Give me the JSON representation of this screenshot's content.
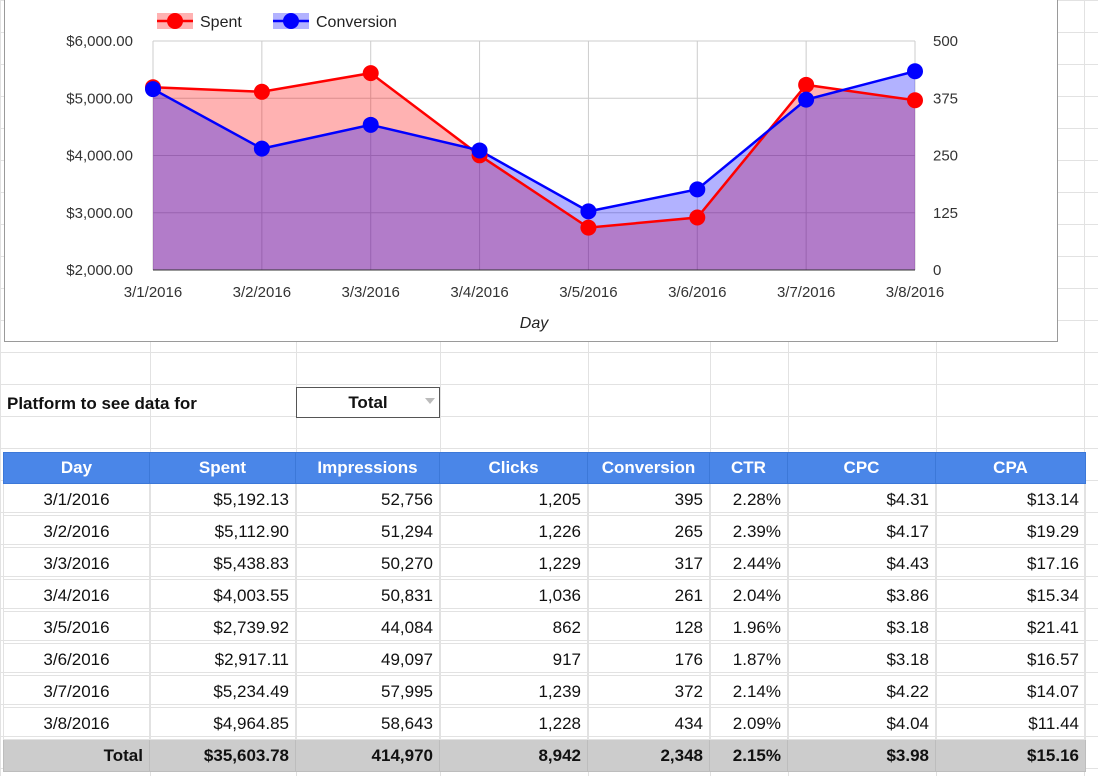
{
  "chart_data": {
    "type": "area",
    "x": [
      "3/1/2016",
      "3/2/2016",
      "3/3/2016",
      "3/4/2016",
      "3/5/2016",
      "3/6/2016",
      "3/7/2016",
      "3/8/2016"
    ],
    "xlabel": "Day",
    "series": [
      {
        "name": "Spent",
        "axis": "left",
        "color": "#ff0000",
        "fill": "#ffb3b3",
        "values": [
          5192.13,
          5112.9,
          5438.83,
          4003.55,
          2739.92,
          2917.11,
          5234.49,
          4964.85
        ]
      },
      {
        "name": "Conversion",
        "axis": "right",
        "color": "#0000ff",
        "fill": "#b3b3ff",
        "values": [
          395,
          265,
          317,
          261,
          128,
          176,
          372,
          434
        ]
      }
    ],
    "y_left": {
      "min": 2000,
      "max": 6000,
      "ticks": [
        "$2,000.00",
        "$3,000.00",
        "$4,000.00",
        "$5,000.00",
        "$6,000.00"
      ]
    },
    "y_right": {
      "min": 0,
      "max": 500,
      "ticks": [
        "0",
        "125",
        "250",
        "375",
        "500"
      ]
    },
    "legend": "top-left",
    "grid": true
  },
  "controls": {
    "platform_label": "Platform to see data for",
    "platform_value": "Total"
  },
  "table": {
    "headers": [
      "Day",
      "Spent",
      "Impressions",
      "Clicks",
      "Conversion",
      "CTR",
      "CPC",
      "CPA"
    ],
    "rows": [
      [
        "3/1/2016",
        "$5,192.13",
        "52,756",
        "1,205",
        "395",
        "2.28%",
        "$4.31",
        "$13.14"
      ],
      [
        "3/2/2016",
        "$5,112.90",
        "51,294",
        "1,226",
        "265",
        "2.39%",
        "$4.17",
        "$19.29"
      ],
      [
        "3/3/2016",
        "$5,438.83",
        "50,270",
        "1,229",
        "317",
        "2.44%",
        "$4.43",
        "$17.16"
      ],
      [
        "3/4/2016",
        "$4,003.55",
        "50,831",
        "1,036",
        "261",
        "2.04%",
        "$3.86",
        "$15.34"
      ],
      [
        "3/5/2016",
        "$2,739.92",
        "44,084",
        "862",
        "128",
        "1.96%",
        "$3.18",
        "$21.41"
      ],
      [
        "3/6/2016",
        "$2,917.11",
        "49,097",
        "917",
        "176",
        "1.87%",
        "$3.18",
        "$16.57"
      ],
      [
        "3/7/2016",
        "$5,234.49",
        "57,995",
        "1,239",
        "372",
        "2.14%",
        "$4.22",
        "$14.07"
      ],
      [
        "3/8/2016",
        "$4,964.85",
        "58,643",
        "1,228",
        "434",
        "2.09%",
        "$4.04",
        "$11.44"
      ]
    ],
    "total": [
      "Total",
      "$35,603.78",
      "414,970",
      "8,942",
      "2,348",
      "2.15%",
      "$3.98",
      "$15.16"
    ]
  }
}
